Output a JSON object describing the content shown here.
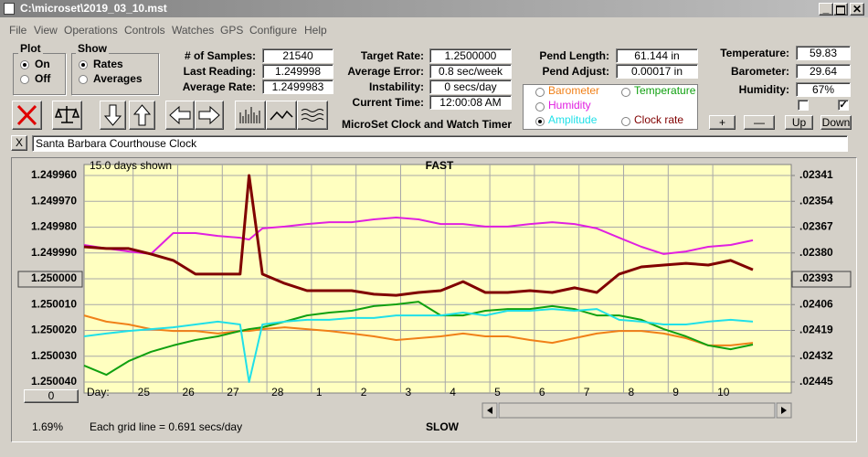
{
  "window": {
    "title": "C:\\microset\\2019_03_10.mst",
    "menu": [
      "File",
      "View",
      "Operations",
      "Controls",
      "Watches",
      "GPS",
      "Configure",
      "Help"
    ]
  },
  "plot_group": {
    "title": "Plot",
    "options": [
      "On",
      "Off"
    ],
    "selected": 0
  },
  "show_group": {
    "title": "Show",
    "options": [
      "Rates",
      "Averages"
    ],
    "selected": 0
  },
  "readings": [
    [
      {
        "label": "# of Samples:",
        "value": "21540"
      },
      {
        "label": "Last Reading:",
        "value": "1.249998"
      },
      {
        "label": "Average Rate:",
        "value": "1.2499983"
      }
    ],
    [
      {
        "label": "Target Rate:",
        "value": "1.2500000"
      },
      {
        "label": "Average Error:",
        "value": "0.8 sec/week"
      },
      {
        "label": "Instability:",
        "value": "0 secs/day"
      },
      {
        "label": "Current Time:",
        "value": "12:00:08 AM"
      }
    ],
    [
      {
        "label": "Pend Length:",
        "value": "61.144 in"
      },
      {
        "label": "Pend Adjust:",
        "value": "0.00017 in"
      }
    ],
    [
      {
        "label": "Temperature:",
        "value": "59.83"
      },
      {
        "label": "Barometer:",
        "value": "29.64"
      },
      {
        "label": "Humidity:",
        "value": "67%"
      }
    ]
  ],
  "app_title": "MicroSet Clock and Watch Timer",
  "adjust_buttons": [
    "+",
    "—",
    "Up",
    "Down"
  ],
  "checkboxes": [
    false,
    true
  ],
  "close_button": "X",
  "clock_name": "Santa Barbara Courthouse Clock",
  "plot": {
    "span_label": "15.0 days shown",
    "top_label": "FAST",
    "bottom_label": "SLOW",
    "grid_note": "Each grid line = 0.691 secs/day",
    "percent": "1.69%",
    "offset_button": "0",
    "x_axis_label": "Day:",
    "xlim": [
      0,
      15.86
    ],
    "xticks": [
      {
        "value": 1.1,
        "label": "25"
      },
      {
        "value": 2.1,
        "label": "26"
      },
      {
        "value": 3.1,
        "label": "27"
      },
      {
        "value": 4.1,
        "label": "28"
      },
      {
        "value": 5.1,
        "label": "1"
      },
      {
        "value": 6.1,
        "label": "2"
      },
      {
        "value": 7.1,
        "label": "3"
      },
      {
        "value": 8.1,
        "label": "4"
      },
      {
        "value": 9.1,
        "label": "5"
      },
      {
        "value": 10.1,
        "label": "6"
      },
      {
        "value": 11.1,
        "label": "7"
      },
      {
        "value": 12.1,
        "label": "8"
      },
      {
        "value": 13.1,
        "label": "9"
      },
      {
        "value": 14.1,
        "label": "10"
      }
    ],
    "ylim": [
      1.25004,
      1.24996
    ],
    "yticks": [
      {
        "value": 1.24996,
        "label": "1.249960"
      },
      {
        "value": 1.24997,
        "label": "1.249970"
      },
      {
        "value": 1.24998,
        "label": "1.249980"
      },
      {
        "value": 1.24999,
        "label": "1.249990"
      },
      {
        "value": 1.25,
        "label": "1.250000"
      },
      {
        "value": 1.25001,
        "label": "1.250010"
      },
      {
        "value": 1.25002,
        "label": "1.250020"
      },
      {
        "value": 1.25003,
        "label": "1.250030"
      },
      {
        "value": 1.25004,
        "label": "1.250040"
      }
    ],
    "y2lim": [
      0.02445,
      0.02341
    ],
    "y2ticks": [
      {
        "value": 0.02341,
        "label": ".02341"
      },
      {
        "value": 0.02354,
        "label": ".02354"
      },
      {
        "value": 0.02367,
        "label": ".02367"
      },
      {
        "value": 0.0238,
        "label": ".02380"
      },
      {
        "value": 0.02393,
        "label": ".02393"
      },
      {
        "value": 0.02406,
        "label": ".02406"
      },
      {
        "value": 0.02419,
        "label": ".02419"
      },
      {
        "value": 0.02432,
        "label": ".02432"
      },
      {
        "value": 0.02445,
        "label": ".02445"
      }
    ],
    "selected_tick": 4,
    "selected_series": 3,
    "x": [
      0,
      0.5,
      1,
      1.5,
      2,
      2.5,
      3,
      3.5,
      3.7,
      4,
      4.5,
      5,
      5.5,
      6,
      6.5,
      7,
      7.5,
      8,
      8.5,
      9,
      9.5,
      10,
      10.5,
      11,
      11.5,
      12,
      12.5,
      13,
      13.5,
      14,
      14.5,
      15
    ],
    "series": [
      {
        "name": "Barometer",
        "color": "#f08018",
        "values": [
          1.2500142,
          1.2500166,
          1.2500177,
          1.2500195,
          1.2500202,
          1.2500202,
          1.2500212,
          1.2500202,
          1.2500202,
          1.2500195,
          1.2500188,
          1.2500195,
          1.2500202,
          1.2500212,
          1.2500223,
          1.2500237,
          1.250023,
          1.2500223,
          1.2500212,
          1.2500223,
          1.2500223,
          1.2500237,
          1.2500248,
          1.250023,
          1.2500212,
          1.2500202,
          1.2500202,
          1.2500212,
          1.250023,
          1.2500258,
          1.2500258,
          1.2500248
        ]
      },
      {
        "name": "Temperature",
        "color": "#10a010",
        "values": [
          1.2500336,
          1.2500372,
          1.2500319,
          1.2500283,
          1.2500258,
          1.2500237,
          1.2500223,
          1.2500202,
          1.2500195,
          1.2500188,
          1.2500166,
          1.2500142,
          1.2500131,
          1.2500124,
          1.2500106,
          1.2500099,
          1.2500089,
          1.2500142,
          1.2500142,
          1.2500124,
          1.2500117,
          1.2500117,
          1.2500106,
          1.2500117,
          1.2500142,
          1.2500142,
          1.2500159,
          1.2500195,
          1.2500223,
          1.2500258,
          1.2500273,
          1.2500255
        ]
      },
      {
        "name": "Humidity",
        "color": "#e020e0",
        "values": [
          1.2499869,
          1.2499883,
          1.2499894,
          1.2499904,
          1.2499823,
          1.2499823,
          1.2499834,
          1.2499841,
          1.2499848,
          1.2499805,
          1.2499798,
          1.2499788,
          1.2499781,
          1.2499781,
          1.249977,
          1.2499763,
          1.249977,
          1.2499788,
          1.2499788,
          1.2499798,
          1.2499798,
          1.2499788,
          1.2499781,
          1.2499788,
          1.2499805,
          1.2499841,
          1.2499876,
          1.2499904,
          1.2499894,
          1.2499876,
          1.2499869,
          1.2499851
        ]
      },
      {
        "name": "Amplitude",
        "color": "#20e0e8",
        "values": [
          1.2500223,
          1.2500212,
          1.2500202,
          1.2500195,
          1.2500188,
          1.2500177,
          1.2500166,
          1.2500177,
          1.25004,
          1.2500177,
          1.2500166,
          1.2500159,
          1.2500159,
          1.2500152,
          1.2500152,
          1.2500142,
          1.2500142,
          1.2500142,
          1.2500131,
          1.2500142,
          1.2500124,
          1.2500124,
          1.2500117,
          1.2500124,
          1.2500117,
          1.2500159,
          1.2500166,
          1.2500177,
          1.2500177,
          1.2500166,
          1.2500159,
          1.2500166
        ]
      },
      {
        "name": "Clock rate",
        "color": "#800000",
        "values": [
          1.2499876,
          1.2499883,
          1.2499883,
          1.2499904,
          1.2499929,
          1.2499982,
          1.2499982,
          1.2499982,
          1.24996,
          1.2499982,
          1.2500018,
          1.2500046,
          1.2500046,
          1.2500046,
          1.250006,
          1.2500064,
          1.2500053,
          1.2500046,
          1.2500011,
          1.2500053,
          1.2500053,
          1.2500046,
          1.2500053,
          1.2500035,
          1.2500053,
          1.2499982,
          1.2499954,
          1.2499947,
          1.249994,
          1.2499947,
          1.2499929,
          1.2499965
        ]
      }
    ]
  }
}
